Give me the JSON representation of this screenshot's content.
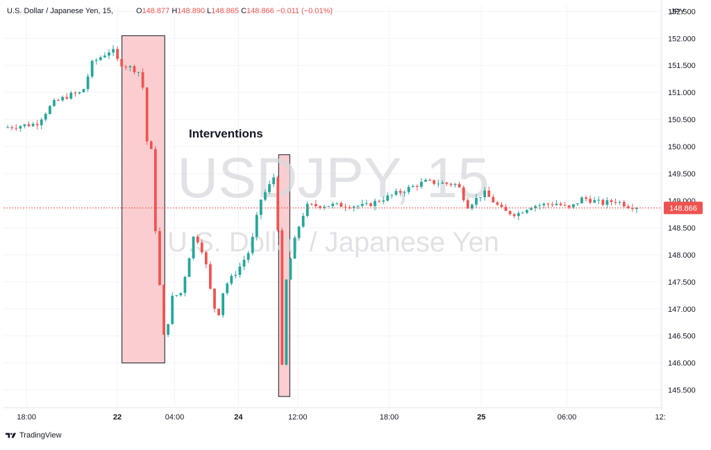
{
  "legend": {
    "symbol_name": "U.S. Dollar / Japanese Yen, 15,",
    "o_label": "O",
    "o_value": "148.877",
    "h_label": "H",
    "h_value": "148.890",
    "l_label": "L",
    "l_value": "148.865",
    "c_label": "C",
    "c_value": "148.866",
    "change": "−0.011 (−0.01%)"
  },
  "currency_label": "JPY",
  "price_badge": "148.866",
  "watermark": {
    "symbol": "USDJPY, 15",
    "description": "U.S. Dollar / Japanese Yen"
  },
  "annotation": "Interventions",
  "footer": {
    "brand": "TradingView"
  },
  "colors": {
    "up": "#26a69a",
    "down": "#ef5350",
    "highlight_fill": "#f9c9cb",
    "price_line": "#ef5350"
  },
  "chart_data": {
    "type": "candlestick",
    "title": "U.S. Dollar / Japanese Yen, 15",
    "ylim": [
      145.2,
      152.35
    ],
    "yticks": [
      "152.500",
      "152.000",
      "151.500",
      "151.000",
      "150.500",
      "150.000",
      "149.500",
      "149.000",
      "148.500",
      "148.000",
      "147.500",
      "147.000",
      "146.500",
      "146.000",
      "145.500"
    ],
    "xticks": [
      "18:00",
      "22",
      "04:00",
      "24",
      "12:00",
      "18:00",
      "25",
      "06:00",
      "12:"
    ],
    "last_price": 148.866,
    "intervention_zones": [
      {
        "x_start": 0.18,
        "x_end": 0.245,
        "y_low": 146.0,
        "y_high": 152.05
      },
      {
        "x_start": 0.418,
        "x_end": 0.435,
        "y_low": 145.38,
        "y_high": 149.85
      }
    ],
    "anchors": [
      {
        "t": 0.0,
        "p": 150.35
      },
      {
        "t": 0.05,
        "p": 150.42
      },
      {
        "t": 0.075,
        "p": 150.8
      },
      {
        "t": 0.1,
        "p": 150.95
      },
      {
        "t": 0.12,
        "p": 151.0
      },
      {
        "t": 0.135,
        "p": 151.55
      },
      {
        "t": 0.165,
        "p": 151.8
      },
      {
        "t": 0.175,
        "p": 151.55
      },
      {
        "t": 0.195,
        "p": 151.45
      },
      {
        "t": 0.21,
        "p": 151.35
      },
      {
        "t": 0.218,
        "p": 150.1
      },
      {
        "t": 0.225,
        "p": 149.9
      },
      {
        "t": 0.232,
        "p": 148.2
      },
      {
        "t": 0.245,
        "p": 146.3
      },
      {
        "t": 0.255,
        "p": 147.2
      },
      {
        "t": 0.27,
        "p": 147.3
      },
      {
        "t": 0.29,
        "p": 148.4
      },
      {
        "t": 0.305,
        "p": 148.0
      },
      {
        "t": 0.315,
        "p": 147.3
      },
      {
        "t": 0.325,
        "p": 146.8
      },
      {
        "t": 0.335,
        "p": 147.4
      },
      {
        "t": 0.355,
        "p": 147.7
      },
      {
        "t": 0.375,
        "p": 148.1
      },
      {
        "t": 0.39,
        "p": 149.0
      },
      {
        "t": 0.405,
        "p": 149.3
      },
      {
        "t": 0.415,
        "p": 149.55
      },
      {
        "t": 0.422,
        "p": 145.6
      },
      {
        "t": 0.43,
        "p": 147.6
      },
      {
        "t": 0.445,
        "p": 148.4
      },
      {
        "t": 0.46,
        "p": 148.9
      },
      {
        "t": 0.5,
        "p": 148.92
      },
      {
        "t": 0.55,
        "p": 148.9
      },
      {
        "t": 0.6,
        "p": 149.15
      },
      {
        "t": 0.64,
        "p": 149.35
      },
      {
        "t": 0.69,
        "p": 149.3
      },
      {
        "t": 0.705,
        "p": 148.9
      },
      {
        "t": 0.73,
        "p": 149.15
      },
      {
        "t": 0.76,
        "p": 148.8
      },
      {
        "t": 0.78,
        "p": 148.75
      },
      {
        "t": 0.8,
        "p": 148.9
      },
      {
        "t": 0.84,
        "p": 148.95
      },
      {
        "t": 0.86,
        "p": 148.85
      },
      {
        "t": 0.88,
        "p": 149.05
      },
      {
        "t": 0.91,
        "p": 148.95
      },
      {
        "t": 0.93,
        "p": 149.0
      },
      {
        "t": 0.95,
        "p": 148.9
      },
      {
        "t": 1.0,
        "p": 148.866
      }
    ]
  }
}
